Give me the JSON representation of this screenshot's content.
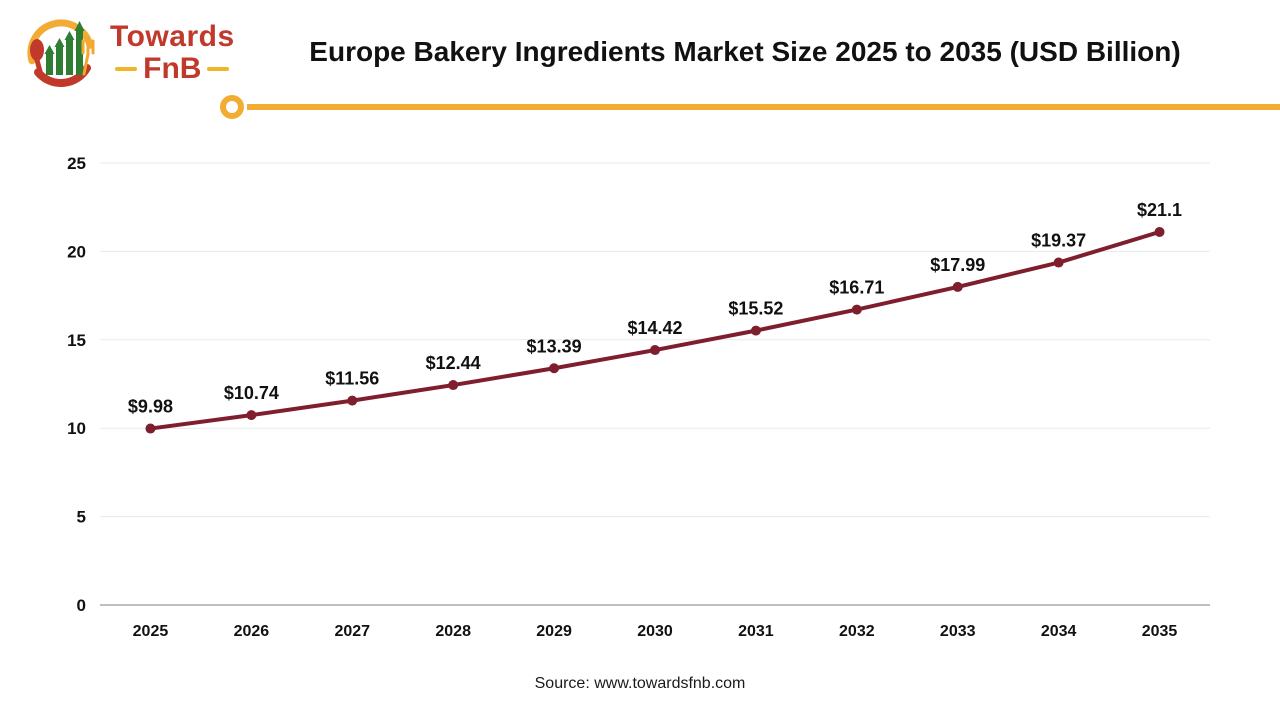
{
  "header": {
    "logo": {
      "towards": "Towards",
      "fnb": "FnB"
    },
    "title": "Europe Bakery Ingredients Market Size 2025 to 2035 (USD Billion)"
  },
  "chart_data": {
    "type": "line",
    "title": "Europe Bakery Ingredients Market Size 2025 to 2035 (USD Billion)",
    "categories": [
      "2025",
      "2026",
      "2027",
      "2028",
      "2029",
      "2030",
      "2031",
      "2032",
      "2033",
      "2034",
      "2035"
    ],
    "values": [
      9.98,
      10.74,
      11.56,
      12.44,
      13.39,
      14.42,
      15.52,
      16.71,
      17.99,
      19.37,
      21.1
    ],
    "point_labels": [
      "$9.98",
      "$10.74",
      "$11.56",
      "$12.44",
      "$13.39",
      "$14.42",
      "$15.52",
      "$16.71",
      "$17.99",
      "$19.37",
      "$21.1"
    ],
    "xlabel": "",
    "ylabel": "",
    "ylim": [
      0,
      25
    ],
    "yticks": [
      0,
      5,
      10,
      15,
      20,
      25
    ],
    "grid": true,
    "legend": "none",
    "line_color": "#7f1f2e",
    "marker": "circle"
  },
  "footer": {
    "source": "Source: www.towardsfnb.com"
  },
  "colors": {
    "accent_yellow": "#f2ac33",
    "brand_red": "#c0392b",
    "brand_green": "#2e7d32",
    "gridline": "#e9e9e9",
    "axis_line": "#bfbfbf",
    "text": "#111111"
  }
}
